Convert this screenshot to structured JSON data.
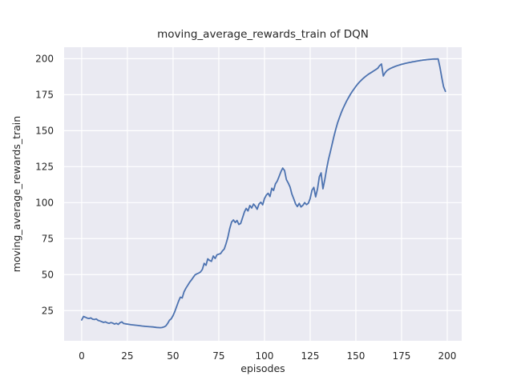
{
  "figure": {
    "title": "moving_average_rewards_train of DQN",
    "xlabel": "episodes",
    "ylabel": "moving_average_rewards_train",
    "colors": {
      "figure_background": "#ffffff",
      "axes_background": "#eaeaf2",
      "grid": "#ffffff",
      "line": "#4c72b0",
      "text": "#262626"
    }
  },
  "chart_data": {
    "type": "line",
    "title": "moving_average_rewards_train of DQN",
    "xlabel": "episodes",
    "ylabel": "moving_average_rewards_train",
    "xlim": [
      -9.6,
      207.9
    ],
    "ylim": [
      4,
      208
    ],
    "xticks": [
      0,
      25,
      50,
      75,
      100,
      125,
      150,
      175,
      200
    ],
    "yticks": [
      25,
      50,
      75,
      100,
      125,
      150,
      175,
      200
    ],
    "grid": true,
    "legend": false,
    "series": [
      {
        "name": "moving_average_rewards_train",
        "color": "#4c72b0",
        "points": [
          [
            0,
            18.5
          ],
          [
            1,
            20.9
          ],
          [
            2,
            20.4
          ],
          [
            3,
            19.8
          ],
          [
            4,
            19.5
          ],
          [
            5,
            19.9
          ],
          [
            6,
            19.0
          ],
          [
            7,
            18.8
          ],
          [
            8,
            19.2
          ],
          [
            9,
            18.2
          ],
          [
            10,
            17.8
          ],
          [
            11,
            17.3
          ],
          [
            12,
            16.8
          ],
          [
            13,
            17.2
          ],
          [
            14,
            16.5
          ],
          [
            15,
            16.1
          ],
          [
            16,
            16.7
          ],
          [
            17,
            16.3
          ],
          [
            18,
            15.6
          ],
          [
            19,
            16.2
          ],
          [
            20,
            15.4
          ],
          [
            21,
            16.6
          ],
          [
            22,
            17.1
          ],
          [
            23,
            16.0
          ],
          [
            24,
            15.8
          ],
          [
            25,
            15.6
          ],
          [
            27,
            15.2
          ],
          [
            29,
            14.9
          ],
          [
            31,
            14.6
          ],
          [
            33,
            14.3
          ],
          [
            35,
            14.0
          ],
          [
            37,
            13.8
          ],
          [
            39,
            13.6
          ],
          [
            41,
            13.3
          ],
          [
            43,
            13.1
          ],
          [
            44,
            13.2
          ],
          [
            45,
            13.6
          ],
          [
            46,
            14.3
          ],
          [
            47,
            16.0
          ],
          [
            48,
            18.3
          ],
          [
            49,
            19.3
          ],
          [
            50,
            21.5
          ],
          [
            51,
            24.5
          ],
          [
            52,
            28.0
          ],
          [
            53,
            31.5
          ],
          [
            54,
            34.3
          ],
          [
            55,
            33.8
          ],
          [
            56,
            38.0
          ],
          [
            57,
            40.5
          ],
          [
            58,
            42.5
          ],
          [
            59,
            44.5
          ],
          [
            60,
            46.2
          ],
          [
            61,
            48.0
          ],
          [
            62,
            49.8
          ],
          [
            63,
            50.5
          ],
          [
            64,
            51.0
          ],
          [
            65,
            51.8
          ],
          [
            66,
            53.5
          ],
          [
            67,
            57.8
          ],
          [
            68,
            56.5
          ],
          [
            69,
            61.0
          ],
          [
            70,
            59.8
          ],
          [
            71,
            59.2
          ],
          [
            72,
            62.9
          ],
          [
            73,
            61.2
          ],
          [
            74,
            63.7
          ],
          [
            75,
            64.2
          ],
          [
            76,
            64.6
          ],
          [
            77,
            66.5
          ],
          [
            78,
            67.8
          ],
          [
            79,
            71.5
          ],
          [
            80,
            76.0
          ],
          [
            81,
            82.0
          ],
          [
            82,
            86.5
          ],
          [
            83,
            88.0
          ],
          [
            84,
            86.2
          ],
          [
            85,
            87.6
          ],
          [
            86,
            84.8
          ],
          [
            87,
            85.6
          ],
          [
            88,
            89.5
          ],
          [
            89,
            93.5
          ],
          [
            90,
            96.0
          ],
          [
            91,
            94.2
          ],
          [
            92,
            98.0
          ],
          [
            93,
            96.3
          ],
          [
            94,
            99.0
          ],
          [
            95,
            97.6
          ],
          [
            96,
            95.4
          ],
          [
            97,
            99.0
          ],
          [
            98,
            100.3
          ],
          [
            99,
            98.5
          ],
          [
            100,
            102.8
          ],
          [
            101,
            105.2
          ],
          [
            102,
            106.5
          ],
          [
            103,
            104.2
          ],
          [
            104,
            110.0
          ],
          [
            105,
            108.5
          ],
          [
            106,
            113.0
          ],
          [
            107,
            115.0
          ],
          [
            108,
            118.2
          ],
          [
            109,
            121.5
          ],
          [
            110,
            124.0
          ],
          [
            111,
            122.3
          ],
          [
            112,
            116.0
          ],
          [
            113,
            113.6
          ],
          [
            114,
            110.8
          ],
          [
            115,
            106.0
          ],
          [
            116,
            102.8
          ],
          [
            117,
            99.2
          ],
          [
            118,
            97.3
          ],
          [
            119,
            99.5
          ],
          [
            120,
            97.0
          ],
          [
            121,
            98.1
          ],
          [
            122,
            100.0
          ],
          [
            123,
            98.6
          ],
          [
            124,
            99.6
          ],
          [
            125,
            102.8
          ],
          [
            126,
            108.6
          ],
          [
            127,
            110.6
          ],
          [
            128,
            104.0
          ],
          [
            129,
            109.5
          ],
          [
            130,
            118.0
          ],
          [
            131,
            120.7
          ],
          [
            132,
            109.6
          ],
          [
            133,
            116.0
          ],
          [
            134,
            123.5
          ],
          [
            135,
            130.0
          ],
          [
            136,
            135.0
          ],
          [
            137,
            140.5
          ],
          [
            138,
            146.0
          ],
          [
            139,
            151.0
          ],
          [
            140,
            155.5
          ],
          [
            141,
            159.0
          ],
          [
            142,
            162.5
          ],
          [
            143,
            165.5
          ],
          [
            144,
            168.2
          ],
          [
            145,
            170.8
          ],
          [
            146,
            173.0
          ],
          [
            147,
            175.2
          ],
          [
            148,
            177.2
          ],
          [
            149,
            179.0
          ],
          [
            150,
            180.8
          ],
          [
            151,
            182.4
          ],
          [
            152,
            183.8
          ],
          [
            153,
            185.1
          ],
          [
            154,
            186.3
          ],
          [
            155,
            187.4
          ],
          [
            156,
            188.4
          ],
          [
            157,
            189.3
          ],
          [
            158,
            190.1
          ],
          [
            159,
            190.9
          ],
          [
            160,
            191.7
          ],
          [
            161,
            192.5
          ],
          [
            162,
            193.4
          ],
          [
            163,
            195.2
          ],
          [
            164,
            196.3
          ],
          [
            165,
            188.0
          ],
          [
            166,
            190.2
          ],
          [
            167,
            191.7
          ],
          [
            168,
            192.6
          ],
          [
            169,
            193.3
          ],
          [
            170,
            193.9
          ],
          [
            171,
            194.4
          ],
          [
            172,
            194.9
          ],
          [
            173,
            195.3
          ],
          [
            174,
            195.7
          ],
          [
            175,
            196.1
          ],
          [
            176,
            196.4
          ],
          [
            177,
            196.7
          ],
          [
            178,
            197.0
          ],
          [
            179,
            197.3
          ],
          [
            180,
            197.5
          ],
          [
            181,
            197.8
          ],
          [
            182,
            198.0
          ],
          [
            183,
            198.3
          ],
          [
            184,
            198.5
          ],
          [
            185,
            198.7
          ],
          [
            186,
            198.9
          ],
          [
            187,
            199.1
          ],
          [
            188,
            199.2
          ],
          [
            189,
            199.4
          ],
          [
            190,
            199.5
          ],
          [
            191,
            199.6
          ],
          [
            192,
            199.7
          ],
          [
            193,
            199.8
          ],
          [
            194,
            199.8
          ],
          [
            195,
            199.9
          ],
          [
            196,
            194.0
          ],
          [
            197,
            187.0
          ],
          [
            198,
            180.5
          ],
          [
            199,
            177.3
          ]
        ]
      }
    ]
  }
}
